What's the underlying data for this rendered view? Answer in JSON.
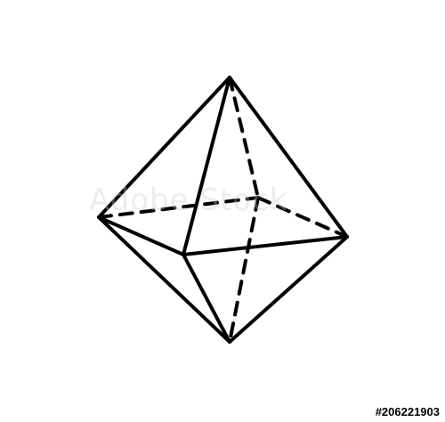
{
  "figure": {
    "line_color": "#000000",
    "background_color": "#ffffff"
  },
  "watermark": {
    "text": "Adobe Stock",
    "color": "#c8c8c8"
  },
  "footer": {
    "stock_id": "#206221903"
  }
}
